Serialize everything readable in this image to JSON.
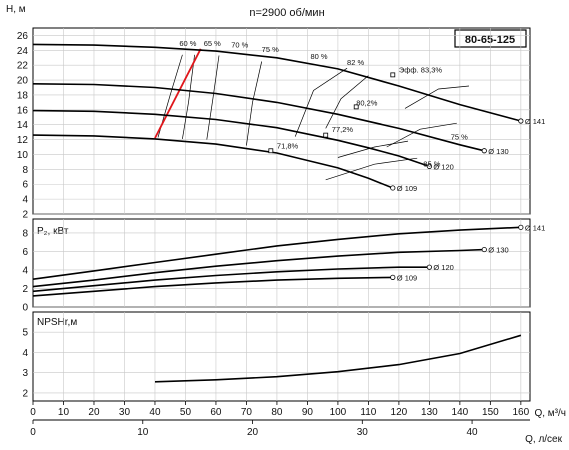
{
  "chart_data": {
    "type": "line",
    "title": "n=2900 об/мин",
    "model": "80-65-125",
    "x_label_q": "Q, м³/ч",
    "x_label_l": "Q, л/сек",
    "x_ticks_m3h": [
      0,
      10,
      20,
      30,
      40,
      50,
      60,
      70,
      80,
      90,
      100,
      110,
      120,
      130,
      140,
      150,
      160
    ],
    "x_ticks_ls": [
      0,
      10,
      20,
      30,
      40
    ],
    "x_range_m3h": [
      0,
      163
    ],
    "panels": [
      {
        "id": "head",
        "ylabel": "H, м",
        "ylim": [
          2,
          27
        ],
        "yticks": [
          2,
          4,
          6,
          8,
          10,
          12,
          14,
          16,
          18,
          20,
          22,
          24,
          26
        ],
        "series": [
          {
            "name": "Ø 141",
            "x": [
              0,
              20,
              40,
              60,
              80,
              100,
              120,
              140,
              160
            ],
            "y": [
              24.8,
              24.7,
              24.4,
              23.9,
              23.0,
              21.5,
              19.2,
              16.7,
              14.5
            ]
          },
          {
            "name": "Ø 130",
            "x": [
              0,
              20,
              40,
              60,
              80,
              100,
              120,
              140,
              148
            ],
            "y": [
              19.5,
              19.4,
              19.0,
              18.2,
              17.0,
              15.4,
              13.5,
              11.3,
              10.5
            ]
          },
          {
            "name": "Ø 120",
            "x": [
              0,
              20,
              40,
              60,
              80,
              100,
              110,
              120,
              130
            ],
            "y": [
              15.9,
              15.8,
              15.4,
              14.7,
              13.6,
              11.9,
              10.9,
              9.8,
              8.4
            ]
          },
          {
            "name": "Ø 109",
            "x": [
              0,
              20,
              40,
              60,
              80,
              100,
              110,
              118
            ],
            "y": [
              12.6,
              12.5,
              12.1,
              11.4,
              10.2,
              8.2,
              6.8,
              5.5
            ]
          }
        ],
        "efficiency_labels": [
          "60 %",
          "65 %",
          "70 %",
          "75 %",
          "80 %",
          "82 %",
          "Эфф. 83,3%",
          "80,2%",
          "77,2%",
          "71,8%",
          "75 %",
          "85 %"
        ],
        "npsh_limit_line": {
          "x": [
            40,
            55
          ],
          "y": [
            12.2,
            24.2
          ]
        }
      },
      {
        "id": "power",
        "ylabel": "P₂, кВт",
        "ylim": [
          0,
          9.5
        ],
        "yticks": [
          0,
          2,
          4,
          6,
          8
        ],
        "series": [
          {
            "name": "Ø 141",
            "x": [
              0,
              20,
              40,
              60,
              80,
              100,
              120,
              140,
              160
            ],
            "y": [
              3.0,
              3.9,
              4.8,
              5.7,
              6.6,
              7.3,
              7.9,
              8.3,
              8.6
            ]
          },
          {
            "name": "Ø 130",
            "x": [
              0,
              20,
              40,
              60,
              80,
              100,
              120,
              140,
              148
            ],
            "y": [
              2.2,
              2.9,
              3.7,
              4.4,
              5.0,
              5.5,
              5.9,
              6.1,
              6.2
            ]
          },
          {
            "name": "Ø 120",
            "x": [
              0,
              20,
              40,
              60,
              80,
              100,
              120,
              130
            ],
            "y": [
              1.7,
              2.3,
              2.9,
              3.4,
              3.8,
              4.1,
              4.3,
              4.3
            ]
          },
          {
            "name": "Ø 109",
            "x": [
              0,
              20,
              40,
              60,
              80,
              100,
              118
            ],
            "y": [
              1.2,
              1.7,
              2.2,
              2.6,
              2.9,
              3.1,
              3.2
            ]
          }
        ]
      },
      {
        "id": "npsh",
        "ylabel": "NPSHr,м",
        "ylim": [
          1.6,
          6.0
        ],
        "yticks": [
          2,
          3,
          4,
          5
        ],
        "series": [
          {
            "name": "",
            "x": [
              40,
              60,
              80,
              100,
              120,
              140,
              160
            ],
            "y": [
              2.55,
              2.65,
              2.8,
              3.05,
              3.4,
              3.95,
              4.85
            ]
          }
        ]
      }
    ]
  }
}
